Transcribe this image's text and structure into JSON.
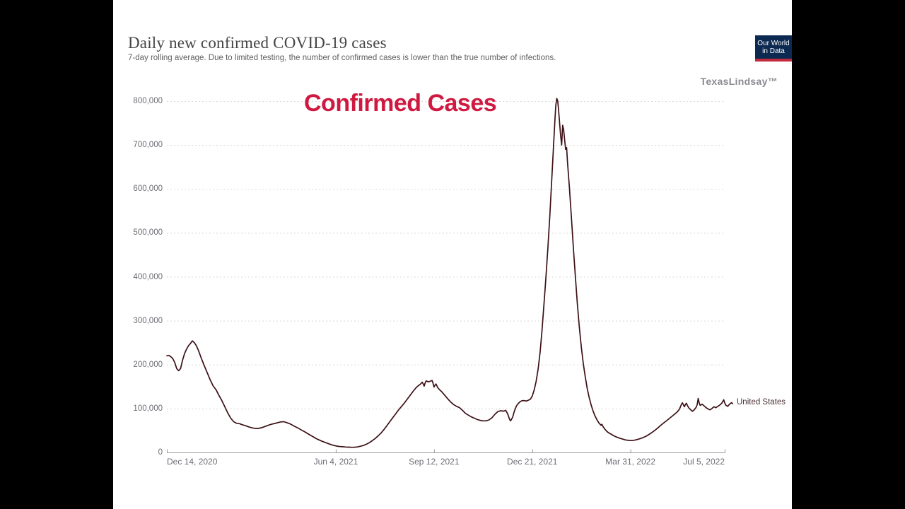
{
  "page": {
    "letterbox_color": "#000000",
    "content_background": "#ffffff"
  },
  "header": {
    "title": "Daily new confirmed COVID-19 cases",
    "subtitle": "7-day rolling average. Due to limited testing, the number of confirmed cases is lower than the true number of infections."
  },
  "logo": {
    "line1": "Our World",
    "line2": "in Data",
    "bg": "#0c2a51",
    "stripe": "#c02a3c",
    "text_color": "#ffffff"
  },
  "watermark": "TexasLindsay™",
  "annotation": {
    "text": "Confirmed Cases",
    "color": "#d01940"
  },
  "entity_label": {
    "text": "United States",
    "color": "#4a3236"
  },
  "chart_data": {
    "type": "line",
    "title": "Daily new confirmed COVID-19 cases",
    "xlabel": "",
    "ylabel": "",
    "x_range": [
      "Dec 14, 2020",
      "Jul 5, 2022"
    ],
    "ylim": [
      0,
      800000
    ],
    "grid": "horizontal-dashed",
    "legend_position": "end-of-line",
    "axis_color": "#9a9a9a",
    "gridline_color": "#d8d8d8",
    "y_ticks": [
      {
        "value": 0,
        "label": "0"
      },
      {
        "value": 100000,
        "label": "100,000"
      },
      {
        "value": 200000,
        "label": "200,000"
      },
      {
        "value": 300000,
        "label": "300,000"
      },
      {
        "value": 400000,
        "label": "400,000"
      },
      {
        "value": 500000,
        "label": "500,000"
      },
      {
        "value": 600000,
        "label": "600,000"
      },
      {
        "value": 700000,
        "label": "700,000"
      },
      {
        "value": 800000,
        "label": "800,000"
      }
    ],
    "x_ticks": [
      {
        "day": 0,
        "label": "Dec 14, 2020",
        "align": "left"
      },
      {
        "day": 172,
        "label": "Jun 4, 2021",
        "align": "center"
      },
      {
        "day": 272,
        "label": "Sep 12, 2021",
        "align": "center"
      },
      {
        "day": 372,
        "label": "Dec 21, 2021",
        "align": "center"
      },
      {
        "day": 472,
        "label": "Mar 31, 2022",
        "align": "center"
      },
      {
        "day": 568,
        "label": "Jul 5, 2022",
        "align": "right"
      }
    ],
    "series": [
      {
        "name": "United States",
        "color": "#3c1016",
        "unit": "cases (7-day rolling average)",
        "points": [
          [
            0,
            220000
          ],
          [
            2,
            221000
          ],
          [
            4,
            218000
          ],
          [
            6,
            214000
          ],
          [
            8,
            205000
          ],
          [
            10,
            191000
          ],
          [
            12,
            186000
          ],
          [
            14,
            191000
          ],
          [
            16,
            210000
          ],
          [
            18,
            225000
          ],
          [
            20,
            235000
          ],
          [
            22,
            243000
          ],
          [
            24,
            248000
          ],
          [
            26,
            254000
          ],
          [
            28,
            250000
          ],
          [
            30,
            243000
          ],
          [
            32,
            233000
          ],
          [
            35,
            215000
          ],
          [
            38,
            198000
          ],
          [
            41,
            182000
          ],
          [
            44,
            166000
          ],
          [
            47,
            152000
          ],
          [
            50,
            143000
          ],
          [
            53,
            130000
          ],
          [
            56,
            118000
          ],
          [
            59,
            104000
          ],
          [
            62,
            90000
          ],
          [
            65,
            78000
          ],
          [
            68,
            70000
          ],
          [
            71,
            66500
          ],
          [
            74,
            65500
          ],
          [
            77,
            63000
          ],
          [
            80,
            61000
          ],
          [
            83,
            58500
          ],
          [
            86,
            56500
          ],
          [
            89,
            55000
          ],
          [
            92,
            54500
          ],
          [
            95,
            55500
          ],
          [
            98,
            57500
          ],
          [
            101,
            60000
          ],
          [
            104,
            62500
          ],
          [
            107,
            64500
          ],
          [
            110,
            66000
          ],
          [
            113,
            68000
          ],
          [
            116,
            69500
          ],
          [
            119,
            70000
          ],
          [
            122,
            68000
          ],
          [
            125,
            65500
          ],
          [
            128,
            62000
          ],
          [
            131,
            58500
          ],
          [
            134,
            55000
          ],
          [
            137,
            51000
          ],
          [
            140,
            47500
          ],
          [
            143,
            43500
          ],
          [
            146,
            39500
          ],
          [
            149,
            35500
          ],
          [
            152,
            31500
          ],
          [
            155,
            28500
          ],
          [
            158,
            25500
          ],
          [
            161,
            23000
          ],
          [
            164,
            20500
          ],
          [
            167,
            18000
          ],
          [
            170,
            16000
          ],
          [
            173,
            14500
          ],
          [
            176,
            13500
          ],
          [
            179,
            13000
          ],
          [
            182,
            12400
          ],
          [
            185,
            12000
          ],
          [
            188,
            11700
          ],
          [
            191,
            11900
          ],
          [
            194,
            12600
          ],
          [
            197,
            14000
          ],
          [
            200,
            15800
          ],
          [
            203,
            18500
          ],
          [
            206,
            22000
          ],
          [
            209,
            26500
          ],
          [
            212,
            31500
          ],
          [
            215,
            37500
          ],
          [
            218,
            44000
          ],
          [
            221,
            52000
          ],
          [
            224,
            61000
          ],
          [
            227,
            70000
          ],
          [
            230,
            79000
          ],
          [
            233,
            88000
          ],
          [
            236,
            97000
          ],
          [
            239,
            105000
          ],
          [
            242,
            113000
          ],
          [
            245,
            122000
          ],
          [
            248,
            131000
          ],
          [
            251,
            140000
          ],
          [
            254,
            148000
          ],
          [
            256,
            152000
          ],
          [
            258,
            155000
          ],
          [
            260,
            160000
          ],
          [
            261,
            156000
          ],
          [
            262,
            151000
          ],
          [
            263,
            158000
          ],
          [
            264,
            163000
          ],
          [
            266,
            161000
          ],
          [
            268,
            162000
          ],
          [
            270,
            164000
          ],
          [
            271,
            158000
          ],
          [
            272,
            149000
          ],
          [
            273,
            153000
          ],
          [
            274,
            156000
          ],
          [
            276,
            147000
          ],
          [
            278,
            142000
          ],
          [
            280,
            138000
          ],
          [
            283,
            130000
          ],
          [
            286,
            122000
          ],
          [
            289,
            115000
          ],
          [
            292,
            109000
          ],
          [
            295,
            105000
          ],
          [
            298,
            102000
          ],
          [
            301,
            96000
          ],
          [
            304,
            89000
          ],
          [
            307,
            85000
          ],
          [
            310,
            81000
          ],
          [
            313,
            78000
          ],
          [
            316,
            75000
          ],
          [
            319,
            73000
          ],
          [
            322,
            72000
          ],
          [
            325,
            72000
          ],
          [
            328,
            74000
          ],
          [
            331,
            79000
          ],
          [
            334,
            87000
          ],
          [
            337,
            93000
          ],
          [
            340,
            95000
          ],
          [
            343,
            94000
          ],
          [
            345,
            96000
          ],
          [
            347,
            88000
          ],
          [
            349,
            75000
          ],
          [
            350,
            72000
          ],
          [
            352,
            80000
          ],
          [
            354,
            95000
          ],
          [
            356,
            106000
          ],
          [
            358,
            112000
          ],
          [
            360,
            116000
          ],
          [
            362,
            118000
          ],
          [
            364,
            118000
          ],
          [
            366,
            117000
          ],
          [
            368,
            119000
          ],
          [
            370,
            121000
          ],
          [
            372,
            128000
          ],
          [
            374,
            142000
          ],
          [
            376,
            162000
          ],
          [
            378,
            190000
          ],
          [
            380,
            228000
          ],
          [
            382,
            278000
          ],
          [
            384,
            338000
          ],
          [
            386,
            400000
          ],
          [
            388,
            468000
          ],
          [
            390,
            540000
          ],
          [
            392,
            625000
          ],
          [
            394,
            710000
          ],
          [
            395,
            752000
          ],
          [
            396,
            790000
          ],
          [
            397,
            806000
          ],
          [
            398,
            800000
          ],
          [
            399,
            776000
          ],
          [
            400,
            748000
          ],
          [
            401,
            720000
          ],
          [
            402,
            700000
          ],
          [
            403,
            745000
          ],
          [
            404,
            735000
          ],
          [
            405,
            712000
          ],
          [
            406,
            690000
          ],
          [
            407,
            694000
          ],
          [
            408,
            660000
          ],
          [
            410,
            600000
          ],
          [
            412,
            532000
          ],
          [
            414,
            462000
          ],
          [
            416,
            398000
          ],
          [
            418,
            338000
          ],
          [
            420,
            285000
          ],
          [
            422,
            240000
          ],
          [
            424,
            202000
          ],
          [
            426,
            172000
          ],
          [
            428,
            146000
          ],
          [
            430,
            125000
          ],
          [
            432,
            108000
          ],
          [
            434,
            94000
          ],
          [
            436,
            83000
          ],
          [
            438,
            74000
          ],
          [
            440,
            67000
          ],
          [
            442,
            62000
          ],
          [
            443,
            64000
          ],
          [
            444,
            59000
          ],
          [
            446,
            53000
          ],
          [
            448,
            48000
          ],
          [
            450,
            44500
          ],
          [
            452,
            42000
          ],
          [
            455,
            38000
          ],
          [
            458,
            35000
          ],
          [
            461,
            32500
          ],
          [
            464,
            30500
          ],
          [
            467,
            28500
          ],
          [
            470,
            27500
          ],
          [
            473,
            27000
          ],
          [
            476,
            27800
          ],
          [
            479,
            29500
          ],
          [
            482,
            31500
          ],
          [
            485,
            34000
          ],
          [
            488,
            37000
          ],
          [
            491,
            41000
          ],
          [
            494,
            45500
          ],
          [
            497,
            50500
          ],
          [
            500,
            56000
          ],
          [
            503,
            62000
          ],
          [
            506,
            67500
          ],
          [
            509,
            72500
          ],
          [
            512,
            78000
          ],
          [
            515,
            83500
          ],
          [
            518,
            89000
          ],
          [
            520,
            93000
          ],
          [
            522,
            99000
          ],
          [
            524,
            110000
          ],
          [
            525,
            113000
          ],
          [
            526,
            108000
          ],
          [
            527,
            104000
          ],
          [
            528,
            109000
          ],
          [
            529,
            112000
          ],
          [
            530,
            107000
          ],
          [
            531,
            103000
          ],
          [
            532,
            100000
          ],
          [
            534,
            96000
          ],
          [
            535,
            93500
          ],
          [
            537,
            97000
          ],
          [
            539,
            103000
          ],
          [
            540,
            109000
          ],
          [
            541,
            123000
          ],
          [
            542,
            113000
          ],
          [
            543,
            107000
          ],
          [
            545,
            110000
          ],
          [
            547,
            106000
          ],
          [
            549,
            102000
          ],
          [
            551,
            99000
          ],
          [
            553,
            97000
          ],
          [
            555,
            100000
          ],
          [
            557,
            104000
          ],
          [
            559,
            102000
          ],
          [
            561,
            105000
          ],
          [
            563,
            108000
          ],
          [
            565,
            112000
          ],
          [
            566,
            116000
          ],
          [
            567,
            120000
          ],
          [
            568,
            113000
          ],
          [
            569,
            108000
          ],
          [
            571,
            105000
          ],
          [
            573,
            110000
          ],
          [
            575,
            113500
          ],
          [
            576,
            111000
          ]
        ]
      }
    ]
  }
}
